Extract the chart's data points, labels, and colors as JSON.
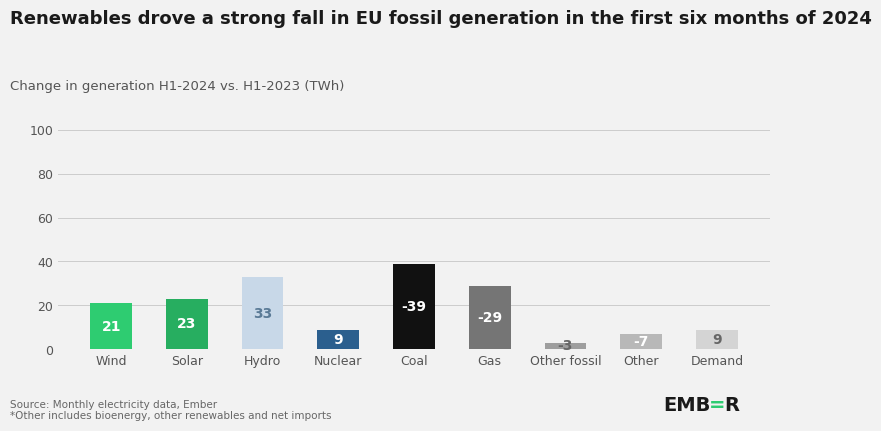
{
  "categories": [
    "Wind",
    "Solar",
    "Hydro",
    "Nuclear",
    "Coal",
    "Gas",
    "Other fossil",
    "Other",
    "Demand"
  ],
  "values": [
    21,
    23,
    33,
    9,
    -39,
    -29,
    -3,
    -7,
    9
  ],
  "bar_heights": [
    21,
    23,
    33,
    9,
    39,
    29,
    3,
    7,
    9
  ],
  "bar_colors": [
    "#2ecc71",
    "#27ae60",
    "#c8d8e8",
    "#2b5f8e",
    "#111111",
    "#757575",
    "#9e9e9e",
    "#b8b8b8",
    "#d4d4d4"
  ],
  "label_colors": [
    "#ffffff",
    "#ffffff",
    "#5a7a96",
    "#ffffff",
    "#ffffff",
    "#ffffff",
    "#666666",
    "#ffffff",
    "#666666"
  ],
  "title": "Renewables drove a strong fall in EU fossil generation in the first six months of 2024",
  "subtitle": "Change in generation H1-2024 vs. H1-2023 (TWh)",
  "ylim": [
    0,
    100
  ],
  "yticks": [
    0,
    20,
    40,
    60,
    80,
    100
  ],
  "source_text": "Source: Monthly electricity data, Ember\n*Other includes bioenergy, other renewables and net imports",
  "bg_color": "#f2f2f2",
  "title_fontsize": 13,
  "subtitle_fontsize": 9.5,
  "label_fontsize": 10,
  "tick_fontsize": 9,
  "bar_width": 0.55
}
